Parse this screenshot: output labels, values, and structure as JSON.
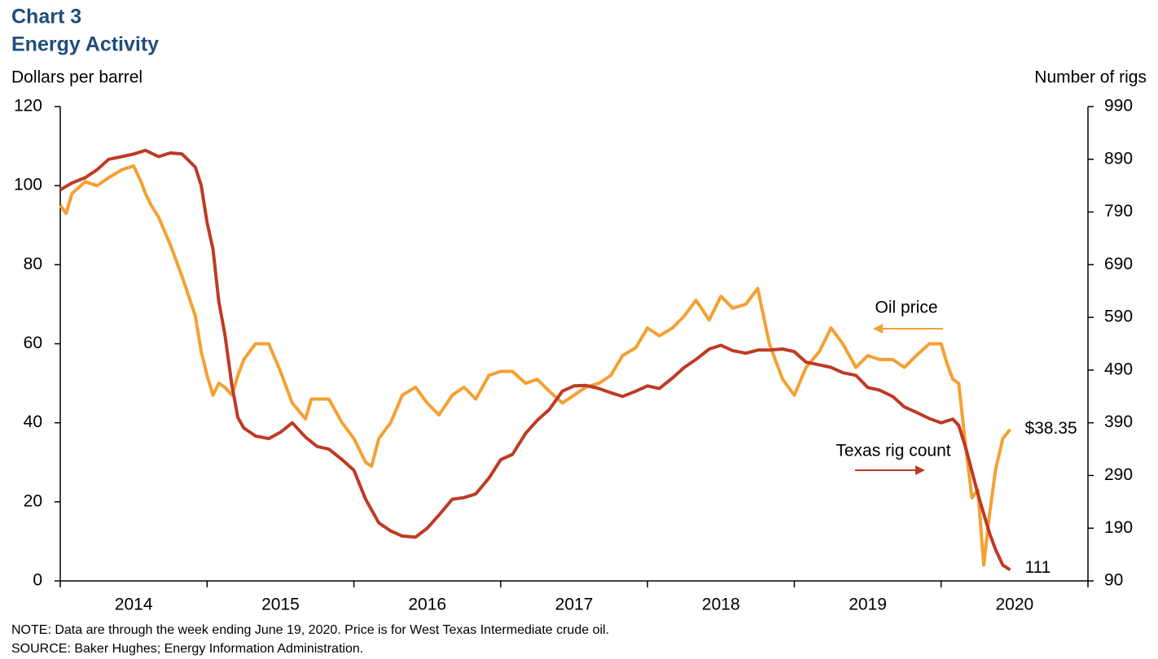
{
  "chart_data": {
    "type": "line",
    "title": "Chart 3",
    "subtitle": "Energy Activity",
    "y_label": "Dollars per barrel",
    "y2_label": "Number of rigs",
    "notes": [
      "NOTE: Data are through the week ending June 19, 2020. Price is for West Texas Intermediate crude oil.",
      "SOURCE: Baker Hughes; Energy Information Administration."
    ],
    "xlim": [
      2014,
      2021
    ],
    "xticks": [
      2014,
      2015,
      2016,
      2017,
      2018,
      2019,
      2020,
      2021
    ],
    "x_labels": [
      "2014",
      "2015",
      "2016",
      "2017",
      "2018",
      "2019",
      "2020"
    ],
    "ylim": [
      0,
      120
    ],
    "yticks": [
      0,
      20,
      40,
      60,
      80,
      100,
      120
    ],
    "y2lim": [
      90,
      990
    ],
    "y2ticks": [
      90,
      190,
      290,
      390,
      490,
      590,
      690,
      790,
      890,
      990
    ],
    "series": [
      {
        "name": "Oil price",
        "color": "#f5a033",
        "axis": "y",
        "x": [
          2014.0,
          2014.04,
          2014.08,
          2014.17,
          2014.25,
          2014.33,
          2014.42,
          2014.5,
          2014.55,
          2014.58,
          2014.62,
          2014.67,
          2014.75,
          2014.83,
          2014.92,
          2014.96,
          2015.0,
          2015.04,
          2015.08,
          2015.12,
          2015.17,
          2015.21,
          2015.25,
          2015.33,
          2015.42,
          2015.5,
          2015.58,
          2015.67,
          2015.71,
          2015.83,
          2015.92,
          2016.0,
          2016.08,
          2016.12,
          2016.17,
          2016.25,
          2016.33,
          2016.42,
          2016.5,
          2016.58,
          2016.67,
          2016.75,
          2016.83,
          2016.92,
          2017.0,
          2017.08,
          2017.17,
          2017.25,
          2017.33,
          2017.42,
          2017.5,
          2017.58,
          2017.67,
          2017.75,
          2017.83,
          2017.92,
          2018.0,
          2018.08,
          2018.17,
          2018.25,
          2018.33,
          2018.42,
          2018.5,
          2018.58,
          2018.67,
          2018.75,
          2018.83,
          2018.92,
          2019.0,
          2019.08,
          2019.17,
          2019.25,
          2019.33,
          2019.42,
          2019.5,
          2019.58,
          2019.67,
          2019.75,
          2019.83,
          2019.92,
          2020.0,
          2020.04,
          2020.08,
          2020.12,
          2020.17,
          2020.21,
          2020.25,
          2020.29,
          2020.33,
          2020.37,
          2020.42,
          2020.47
        ],
        "values": [
          95,
          93,
          98,
          101,
          100,
          102,
          104,
          105,
          101,
          98,
          95,
          92,
          85,
          77,
          67,
          58,
          52,
          47,
          50,
          49,
          47,
          52,
          56,
          60,
          60,
          53,
          45,
          41,
          46,
          46,
          40,
          36,
          30,
          29,
          36,
          40,
          47,
          49,
          45,
          42,
          47,
          49,
          46,
          52,
          53,
          53,
          50,
          51,
          48,
          45,
          47,
          49,
          50,
          52,
          57,
          59,
          64,
          62,
          64,
          67,
          71,
          66,
          72,
          69,
          70,
          74,
          60,
          51,
          47,
          54,
          58,
          64,
          60,
          54,
          57,
          56,
          56,
          54,
          57,
          60,
          60,
          55,
          51,
          50,
          33,
          21,
          23,
          4,
          17,
          28,
          36,
          38.35
        ],
        "value_labels": [
          null,
          null,
          null,
          null,
          null,
          null,
          null,
          null,
          null,
          null,
          null,
          null,
          null,
          null,
          null,
          null,
          null,
          null,
          null,
          null,
          null,
          null,
          null,
          null,
          null,
          null,
          null,
          null,
          null,
          null,
          null,
          null,
          null,
          null,
          null,
          null,
          null,
          null,
          null,
          null,
          null,
          null,
          null,
          null,
          null,
          null,
          null,
          null,
          null,
          null,
          null,
          null,
          null,
          null,
          null,
          null,
          null,
          null,
          null,
          null,
          null,
          null,
          null,
          null,
          null,
          null,
          null,
          null,
          null,
          null,
          null,
          null,
          null,
          null,
          null,
          null,
          null,
          null,
          null,
          null,
          null,
          null,
          null,
          null,
          null,
          null,
          null,
          null,
          null,
          null,
          null,
          "$38.35"
        ]
      },
      {
        "name": "Texas rig count",
        "color": "#bf3a25",
        "axis": "y2",
        "x": [
          2014.0,
          2014.08,
          2014.17,
          2014.25,
          2014.33,
          2014.42,
          2014.5,
          2014.58,
          2014.67,
          2014.75,
          2014.83,
          2014.92,
          2014.96,
          2015.0,
          2015.04,
          2015.08,
          2015.12,
          2015.17,
          2015.21,
          2015.25,
          2015.33,
          2015.42,
          2015.5,
          2015.58,
          2015.67,
          2015.75,
          2015.83,
          2015.92,
          2016.0,
          2016.08,
          2016.17,
          2016.25,
          2016.33,
          2016.42,
          2016.5,
          2016.58,
          2016.67,
          2016.75,
          2016.83,
          2016.92,
          2017.0,
          2017.08,
          2017.17,
          2017.25,
          2017.33,
          2017.42,
          2017.5,
          2017.58,
          2017.67,
          2017.75,
          2017.83,
          2017.92,
          2018.0,
          2018.08,
          2018.17,
          2018.25,
          2018.33,
          2018.42,
          2018.5,
          2018.58,
          2018.67,
          2018.75,
          2018.83,
          2018.92,
          2019.0,
          2019.08,
          2019.17,
          2019.25,
          2019.33,
          2019.42,
          2019.5,
          2019.58,
          2019.67,
          2019.75,
          2019.83,
          2019.92,
          2020.0,
          2020.08,
          2020.12,
          2020.17,
          2020.25,
          2020.33,
          2020.37,
          2020.42,
          2020.47
        ],
        "values": [
          832,
          845,
          855,
          870,
          890,
          895,
          900,
          907,
          895,
          902,
          900,
          875,
          840,
          770,
          720,
          620,
          560,
          460,
          400,
          380,
          365,
          360,
          372,
          390,
          363,
          345,
          340,
          320,
          300,
          245,
          200,
          185,
          175,
          173,
          190,
          215,
          245,
          248,
          255,
          285,
          320,
          330,
          370,
          395,
          415,
          450,
          460,
          461,
          455,
          447,
          440,
          450,
          460,
          455,
          475,
          495,
          510,
          530,
          537,
          527,
          522,
          528,
          528,
          530,
          525,
          505,
          500,
          495,
          485,
          480,
          457,
          452,
          440,
          420,
          410,
          398,
          390,
          397,
          385,
          340,
          255,
          180,
          150,
          120,
          111
        ]
      }
    ]
  }
}
